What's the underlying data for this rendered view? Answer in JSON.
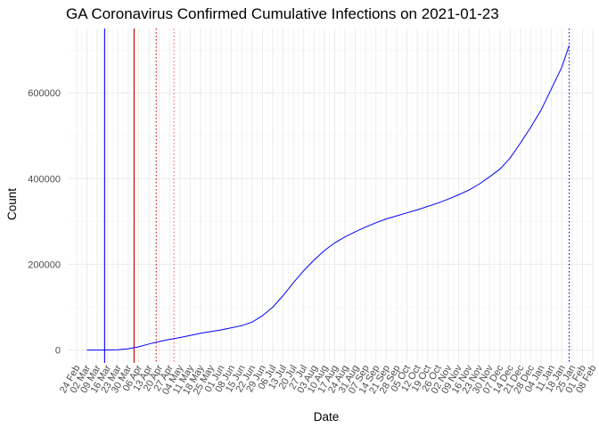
{
  "chart_data": {
    "type": "line",
    "title": "GA Coronavirus Confirmed Cumulative Infections on 2021-01-23",
    "xlabel": "Date",
    "ylabel": "Count",
    "ylim": [
      -30000,
      750000
    ],
    "yticks": [
      0,
      200000,
      400000,
      600000
    ],
    "ytick_labels": [
      "0",
      "200000",
      "400000",
      "600000"
    ],
    "xlim": [
      "2020-02-18",
      "2021-02-08"
    ],
    "xticks": [
      "2020-02-24",
      "2020-03-02",
      "2020-03-09",
      "2020-03-16",
      "2020-03-23",
      "2020-03-30",
      "2020-04-06",
      "2020-04-13",
      "2020-04-20",
      "2020-04-27",
      "2020-05-04",
      "2020-05-11",
      "2020-05-18",
      "2020-05-25",
      "2020-06-01",
      "2020-06-08",
      "2020-06-15",
      "2020-06-22",
      "2020-06-29",
      "2020-07-06",
      "2020-07-13",
      "2020-07-20",
      "2020-07-27",
      "2020-08-03",
      "2020-08-10",
      "2020-08-17",
      "2020-08-24",
      "2020-08-31",
      "2020-09-07",
      "2020-09-14",
      "2020-09-21",
      "2020-09-28",
      "2020-10-05",
      "2020-10-12",
      "2020-10-19",
      "2020-10-26",
      "2020-11-02",
      "2020-11-09",
      "2020-11-16",
      "2020-11-23",
      "2020-11-30",
      "2020-12-07",
      "2020-12-14",
      "2020-12-21",
      "2020-12-28",
      "2021-01-04",
      "2021-01-11",
      "2021-01-18",
      "2021-01-25",
      "2021-02-01",
      "2021-02-08"
    ],
    "xtick_labels": [
      "24 Feb",
      "02 Mar",
      "09 Mar",
      "16 Mar",
      "23 Mar",
      "30 Mar",
      "06 Apr",
      "13 Apr",
      "20 Apr",
      "27 Apr",
      "04 May",
      "11 May",
      "18 May",
      "25 May",
      "01 Jun",
      "08 Jun",
      "15 Jun",
      "22 Jun",
      "29 Jun",
      "06 Jul",
      "13 Jul",
      "20 Jul",
      "27 Jul",
      "03 Aug",
      "10 Aug",
      "17 Aug",
      "24 Aug",
      "31 Aug",
      "07 Sep",
      "14 Sep",
      "21 Sep",
      "28 Sep",
      "05 Oct",
      "12 Oct",
      "19 Oct",
      "26 Oct",
      "02 Nov",
      "09 Nov",
      "16 Nov",
      "23 Nov",
      "30 Nov",
      "07 Dec",
      "14 Dec",
      "21 Dec",
      "28 Dec",
      "04 Jan",
      "11 Jan",
      "18 Jan",
      "25 Jan",
      "01 Feb",
      "08 Feb"
    ],
    "grid": true,
    "series": [
      {
        "color": "#0000ff",
        "points": [
          [
            "2020-03-02",
            0
          ],
          [
            "2020-03-09",
            0
          ],
          [
            "2020-03-16",
            100
          ],
          [
            "2020-03-23",
            800
          ],
          [
            "2020-03-30",
            3000
          ],
          [
            "2020-04-06",
            7500
          ],
          [
            "2020-04-13",
            14000
          ],
          [
            "2020-04-20",
            20000
          ],
          [
            "2020-04-27",
            25000
          ],
          [
            "2020-05-04",
            29000
          ],
          [
            "2020-05-11",
            34000
          ],
          [
            "2020-05-18",
            39000
          ],
          [
            "2020-05-25",
            43000
          ],
          [
            "2020-06-01",
            47000
          ],
          [
            "2020-06-08",
            52000
          ],
          [
            "2020-06-15",
            57000
          ],
          [
            "2020-06-22",
            65000
          ],
          [
            "2020-06-29",
            80000
          ],
          [
            "2020-07-06",
            100000
          ],
          [
            "2020-07-13",
            127000
          ],
          [
            "2020-07-20",
            157000
          ],
          [
            "2020-07-27",
            185000
          ],
          [
            "2020-08-03",
            210000
          ],
          [
            "2020-08-10",
            232000
          ],
          [
            "2020-08-17",
            250000
          ],
          [
            "2020-08-24",
            264000
          ],
          [
            "2020-08-31",
            276000
          ],
          [
            "2020-09-07",
            287000
          ],
          [
            "2020-09-14",
            297000
          ],
          [
            "2020-09-21",
            306000
          ],
          [
            "2020-09-28",
            313000
          ],
          [
            "2020-10-05",
            320000
          ],
          [
            "2020-10-12",
            327000
          ],
          [
            "2020-10-19",
            335000
          ],
          [
            "2020-10-26",
            343000
          ],
          [
            "2020-11-02",
            352000
          ],
          [
            "2020-11-09",
            362000
          ],
          [
            "2020-11-16",
            373000
          ],
          [
            "2020-11-23",
            387000
          ],
          [
            "2020-11-30",
            404000
          ],
          [
            "2020-12-07",
            422000
          ],
          [
            "2020-12-14",
            448000
          ],
          [
            "2020-12-21",
            483000
          ],
          [
            "2020-12-28",
            520000
          ],
          [
            "2021-01-04",
            560000
          ],
          [
            "2021-01-11",
            610000
          ],
          [
            "2021-01-18",
            660000
          ],
          [
            "2021-01-23",
            710000
          ]
        ]
      }
    ],
    "vlines": [
      {
        "date": "2020-03-14",
        "color": "#0000ff",
        "style": "solid"
      },
      {
        "date": "2020-04-03",
        "color": "#cc0000",
        "style": "solid"
      },
      {
        "date": "2020-04-18",
        "color": "#cc0000",
        "style": "dotted"
      },
      {
        "date": "2020-04-30",
        "color": "#ff6666",
        "style": "dotted"
      },
      {
        "date": "2021-01-23",
        "color": "#0000ff",
        "style": "dotted"
      }
    ]
  }
}
